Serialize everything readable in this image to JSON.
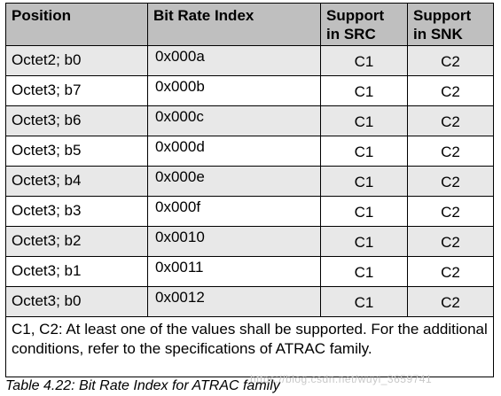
{
  "table": {
    "headers": {
      "position": "Position",
      "bit_rate_index": "Bit Rate Index",
      "support_src_line1": "Support",
      "support_src_line2": "in SRC",
      "support_snk_line1": "Support",
      "support_snk_line2": "in SNK"
    },
    "rows": [
      {
        "position": "Octet2; b0",
        "index": "0x000a",
        "src": "C1",
        "snk": "C2"
      },
      {
        "position": "Octet3; b7",
        "index": "0x000b",
        "src": "C1",
        "snk": "C2"
      },
      {
        "position": "Octet3; b6",
        "index": "0x000c",
        "src": "C1",
        "snk": "C2"
      },
      {
        "position": "Octet3; b5",
        "index": "0x000d",
        "src": "C1",
        "snk": "C2"
      },
      {
        "position": "Octet3; b4",
        "index": "0x000e",
        "src": "C1",
        "snk": "C2"
      },
      {
        "position": "Octet3; b3",
        "index": "0x000f",
        "src": "C1",
        "snk": "C2"
      },
      {
        "position": "Octet3; b2",
        "index": "0x0010",
        "src": "C1",
        "snk": "C2"
      },
      {
        "position": "Octet3; b1",
        "index": "0x0011",
        "src": "C1",
        "snk": "C2"
      },
      {
        "position": "Octet3; b0",
        "index": "0x0012",
        "src": "C1",
        "snk": "C2"
      }
    ],
    "note": "C1, C2:   At least one of the values shall be supported. For the additional conditions, refer to the specifications of ATRAC family."
  },
  "caption": "Table 4.22: Bit Rate Index for ATRAC family",
  "watermark": "https://blog.csdn.net/wuyi_3659741"
}
